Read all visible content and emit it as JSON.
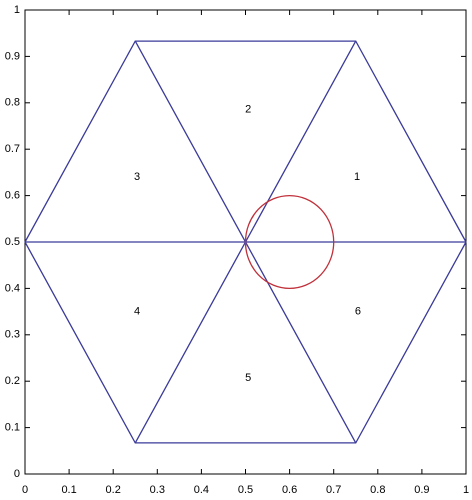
{
  "chart_data": {
    "type": "line",
    "xlim": [
      0,
      1
    ],
    "ylim": [
      0,
      1
    ],
    "xticks": [
      0,
      0.1,
      0.2,
      0.3,
      0.4,
      0.5,
      0.6,
      0.7,
      0.8,
      0.9,
      1
    ],
    "yticks": [
      0,
      0.1,
      0.2,
      0.3,
      0.4,
      0.5,
      0.6,
      0.7,
      0.8,
      0.9,
      1
    ],
    "series": [
      {
        "color": "#3a3a9a",
        "x": [
          1,
          0.75,
          0.25,
          0,
          0.25,
          0.75,
          1
        ],
        "values": [
          0.5,
          0.933,
          0.933,
          0.5,
          0.067,
          0.067,
          0.5
        ]
      },
      {
        "color": "#3a3a9a",
        "x": [
          0,
          1
        ],
        "values": [
          0.5,
          0.5
        ]
      },
      {
        "color": "#3a3a9a",
        "x": [
          0.25,
          0.75
        ],
        "values": [
          0.933,
          0.067
        ]
      },
      {
        "color": "#3a3a9a",
        "x": [
          0.75,
          0.25
        ],
        "values": [
          0.933,
          0.067
        ]
      }
    ],
    "circles": [
      {
        "cx": 0.6,
        "cy": 0.5,
        "r": 0.1,
        "color": "#c0303a"
      }
    ],
    "annotations": [
      {
        "text": "1",
        "x": 0.753,
        "y": 0.64
      },
      {
        "text": "2",
        "x": 0.506,
        "y": 0.785
      },
      {
        "text": "3",
        "x": 0.254,
        "y": 0.64
      },
      {
        "text": "4",
        "x": 0.254,
        "y": 0.35
      },
      {
        "text": "5",
        "x": 0.506,
        "y": 0.207
      },
      {
        "text": "6",
        "x": 0.755,
        "y": 0.35
      }
    ]
  }
}
